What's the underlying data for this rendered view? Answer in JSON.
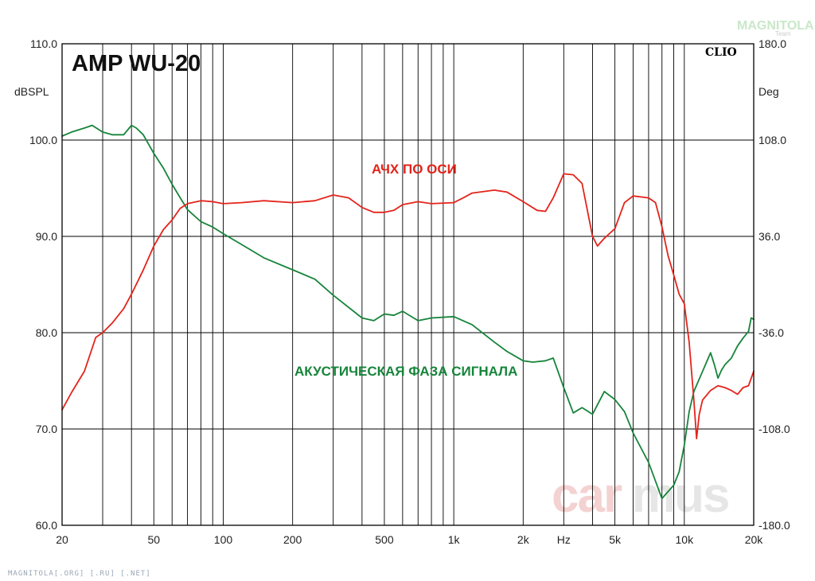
{
  "logo": {
    "text": "MAGNITOLA",
    "sub": "Team"
  },
  "footer": "MAGNITOLA[.ORG] [.RU] [.NET]",
  "watermark": {
    "part1": "car",
    "part2": "mus"
  },
  "colors": {
    "spl": "#e3241b",
    "phase": "#16843a",
    "grid": "#000000"
  },
  "chart_data": {
    "type": "line",
    "title": "AMP WU-20",
    "brand": "CLIO",
    "xscale": "log",
    "xlim": [
      20,
      20000
    ],
    "xlabel": "Hz",
    "x_ticks": [
      {
        "v": 20,
        "label": "20"
      },
      {
        "v": 50,
        "label": "50"
      },
      {
        "v": 100,
        "label": "100"
      },
      {
        "v": 200,
        "label": "200"
      },
      {
        "v": 500,
        "label": "500"
      },
      {
        "v": 1000,
        "label": "1k"
      },
      {
        "v": 2000,
        "label": "2k"
      },
      {
        "v": 5000,
        "label": "5k"
      },
      {
        "v": 10000,
        "label": "10k"
      },
      {
        "v": 20000,
        "label": "20k"
      }
    ],
    "y_left": {
      "label": "dBSPL",
      "lim": [
        60,
        110
      ],
      "ticks": [
        "60.0",
        "70.0",
        "80.0",
        "90.0",
        "100.0",
        "110.0"
      ]
    },
    "y_right": {
      "label": "Deg",
      "lim": [
        -180,
        180
      ],
      "ticks": [
        "-180.0",
        "-108.0",
        "-36.0",
        "36.0",
        "108.0",
        "180.0"
      ]
    },
    "grid": true,
    "series": [
      {
        "name": "АЧХ ПО ОСИ",
        "axis": "left",
        "color": "#e3241b",
        "x": [
          20,
          22,
          25,
          28,
          30,
          33,
          37,
          40,
          45,
          50,
          55,
          60,
          65,
          70,
          80,
          90,
          100,
          120,
          150,
          200,
          250,
          300,
          350,
          400,
          450,
          500,
          550,
          600,
          700,
          800,
          1000,
          1100,
          1200,
          1500,
          1700,
          2000,
          2300,
          2500,
          2700,
          3000,
          3300,
          3600,
          4000,
          4200,
          4500,
          5000,
          5500,
          6000,
          7000,
          7500,
          8000,
          8500,
          9000,
          9500,
          10000,
          10500,
          11000,
          11300,
          11600,
          12000,
          13000,
          14000,
          15000,
          16000,
          17000,
          18000,
          19000,
          20000
        ],
        "y": [
          72.0,
          73.8,
          76.0,
          79.5,
          80.0,
          81.0,
          82.5,
          84.0,
          86.5,
          89.0,
          90.7,
          91.7,
          92.9,
          93.4,
          93.7,
          93.6,
          93.4,
          93.5,
          93.7,
          93.5,
          93.7,
          94.3,
          94.0,
          93.0,
          92.5,
          92.5,
          92.7,
          93.3,
          93.6,
          93.4,
          93.5,
          94.0,
          94.5,
          94.8,
          94.6,
          93.6,
          92.7,
          92.6,
          94.0,
          96.5,
          96.4,
          95.5,
          90.0,
          89.0,
          89.8,
          90.8,
          93.5,
          94.2,
          94.0,
          93.5,
          91.0,
          88.0,
          86.0,
          84.0,
          83.0,
          79.0,
          73.0,
          69.0,
          71.5,
          73.0,
          74.0,
          74.5,
          74.3,
          74.0,
          73.6,
          74.3,
          74.5,
          76.0
        ]
      },
      {
        "name": "АКУСТИЧЕСКАЯ ФАЗА СИГНАЛА",
        "axis": "right",
        "color": "#16843a",
        "x": [
          20,
          22,
          25,
          27,
          30,
          33,
          37,
          40,
          42,
          45,
          50,
          55,
          60,
          65,
          70,
          80,
          90,
          100,
          120,
          150,
          200,
          250,
          300,
          400,
          450,
          500,
          550,
          600,
          700,
          800,
          1000,
          1200,
          1500,
          1700,
          2000,
          2200,
          2500,
          2700,
          3000,
          3300,
          3600,
          4000,
          4500,
          5000,
          5500,
          6000,
          7000,
          8000,
          9000,
          9500,
          10000,
          10500,
          11000,
          12000,
          13000,
          13500,
          14000,
          14500,
          15000,
          16000,
          17000,
          18000,
          19000,
          19500,
          20000
        ],
        "y": [
          111,
          114,
          117,
          119,
          114,
          112,
          112,
          119,
          117,
          112,
          98,
          87,
          75,
          65,
          56,
          47,
          43,
          38,
          30,
          20,
          11,
          4,
          -8,
          -25,
          -27,
          -22,
          -23,
          -20,
          -27,
          -25,
          -24,
          -30,
          -43,
          -50,
          -57,
          -58,
          -57,
          -55,
          -77,
          -96,
          -92,
          -97,
          -80,
          -86,
          -95,
          -111,
          -133,
          -160,
          -150,
          -140,
          -120,
          -95,
          -80,
          -65,
          -51,
          -60,
          -70,
          -64,
          -60,
          -55,
          -46,
          -40,
          -35,
          -25,
          -26
        ]
      }
    ],
    "annotations": [
      {
        "text": "АЧХ ПО ОСИ",
        "series": 0
      },
      {
        "text": "АКУСТИЧЕСКАЯ ФАЗА СИГНАЛА",
        "series": 1
      }
    ]
  }
}
